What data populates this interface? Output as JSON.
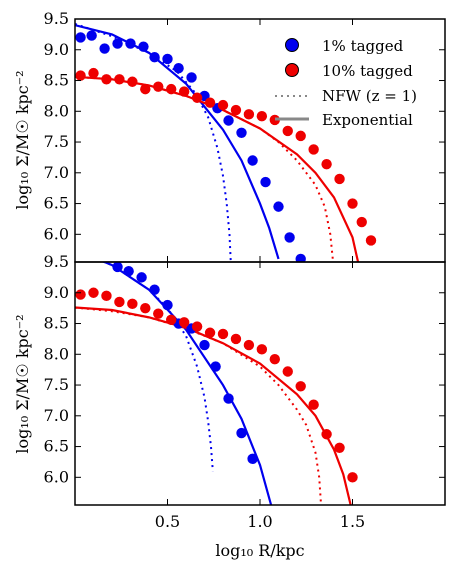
{
  "chart_data": [
    {
      "type": "scatter",
      "panel": "top",
      "xlim": [
        0.0,
        2.0
      ],
      "ylim": [
        5.55,
        9.5
      ],
      "ylabel": "log₁₀ Σ/M☉ kpc⁻²",
      "xlabel": "",
      "yticks": [
        "6.0",
        "6.5",
        "7.0",
        "7.5",
        "8.0",
        "8.5",
        "9.0",
        "9.5"
      ],
      "legend": {
        "placement": "top-right",
        "entries": [
          "1% tagged",
          "10% tagged",
          "NFW (z = 1)",
          "Exponential"
        ]
      },
      "series": [
        {
          "name": "1% tagged",
          "color": "#0000ee",
          "points": [
            [
              0.03,
              9.2
            ],
            [
              0.09,
              9.23
            ],
            [
              0.16,
              9.02
            ],
            [
              0.23,
              9.1
            ],
            [
              0.3,
              9.1
            ],
            [
              0.37,
              9.05
            ],
            [
              0.43,
              8.88
            ],
            [
              0.5,
              8.85
            ],
            [
              0.56,
              8.7
            ],
            [
              0.63,
              8.55
            ],
            [
              0.7,
              8.25
            ],
            [
              0.77,
              8.05
            ],
            [
              0.83,
              7.85
            ],
            [
              0.9,
              7.65
            ],
            [
              0.96,
              7.2
            ],
            [
              1.03,
              6.85
            ],
            [
              1.1,
              6.45
            ],
            [
              1.16,
              5.95
            ],
            [
              1.22,
              5.6
            ]
          ],
          "nfw": [
            [
              0.0,
              9.42
            ],
            [
              0.2,
              9.22
            ],
            [
              0.4,
              8.95
            ],
            [
              0.55,
              8.65
            ],
            [
              0.65,
              8.3
            ],
            [
              0.72,
              7.9
            ],
            [
              0.77,
              7.4
            ],
            [
              0.8,
              6.95
            ],
            [
              0.82,
              6.5
            ],
            [
              0.835,
              6.0
            ],
            [
              0.842,
              5.55
            ]
          ],
          "exponential": [
            [
              0.0,
              9.4
            ],
            [
              0.2,
              9.25
            ],
            [
              0.4,
              8.95
            ],
            [
              0.6,
              8.45
            ],
            [
              0.8,
              7.7
            ],
            [
              0.9,
              7.2
            ],
            [
              1.0,
              6.5
            ],
            [
              1.05,
              6.1
            ],
            [
              1.1,
              5.6
            ]
          ]
        },
        {
          "name": "10% tagged",
          "color": "#ee0000",
          "points": [
            [
              0.03,
              8.58
            ],
            [
              0.1,
              8.62
            ],
            [
              0.17,
              8.52
            ],
            [
              0.24,
              8.52
            ],
            [
              0.31,
              8.48
            ],
            [
              0.38,
              8.36
            ],
            [
              0.45,
              8.4
            ],
            [
              0.52,
              8.36
            ],
            [
              0.59,
              8.32
            ],
            [
              0.66,
              8.22
            ],
            [
              0.73,
              8.14
            ],
            [
              0.8,
              8.1
            ],
            [
              0.87,
              8.02
            ],
            [
              0.94,
              7.95
            ],
            [
              1.01,
              7.92
            ],
            [
              1.08,
              7.86
            ],
            [
              1.15,
              7.68
            ],
            [
              1.22,
              7.6
            ],
            [
              1.29,
              7.38
            ],
            [
              1.36,
              7.14
            ],
            [
              1.43,
              6.9
            ],
            [
              1.5,
              6.5
            ],
            [
              1.55,
              6.2
            ],
            [
              1.6,
              5.9
            ]
          ],
          "nfw": [
            [
              0.0,
              8.56
            ],
            [
              0.2,
              8.52
            ],
            [
              0.4,
              8.42
            ],
            [
              0.6,
              8.25
            ],
            [
              0.8,
              8.02
            ],
            [
              1.0,
              7.72
            ],
            [
              1.1,
              7.5
            ],
            [
              1.2,
              7.2
            ],
            [
              1.3,
              6.8
            ],
            [
              1.35,
              6.45
            ],
            [
              1.38,
              6.0
            ],
            [
              1.395,
              5.55
            ]
          ],
          "exponential": [
            [
              0.0,
              8.56
            ],
            [
              0.2,
              8.52
            ],
            [
              0.4,
              8.42
            ],
            [
              0.6,
              8.25
            ],
            [
              0.8,
              8.02
            ],
            [
              1.0,
              7.72
            ],
            [
              1.2,
              7.3
            ],
            [
              1.3,
              7.0
            ],
            [
              1.4,
              6.6
            ],
            [
              1.5,
              5.95
            ],
            [
              1.53,
              5.55
            ]
          ]
        }
      ]
    },
    {
      "type": "scatter",
      "panel": "bottom",
      "xlim": [
        0.0,
        2.0
      ],
      "ylim": [
        5.55,
        9.5
      ],
      "ylabel": "log₁₀ Σ/M☉ kpc⁻²",
      "xlabel": "log₁₀ R/kpc",
      "xticks": [
        "0.5",
        "1.0",
        "1.5"
      ],
      "yticks": [
        "6.0",
        "6.5",
        "7.0",
        "7.5",
        "8.0",
        "8.5",
        "9.0",
        "9.5"
      ],
      "series": [
        {
          "name": "1% tagged",
          "color": "#0000ee",
          "points": [
            [
              0.23,
              9.42
            ],
            [
              0.29,
              9.35
            ],
            [
              0.36,
              9.25
            ],
            [
              0.43,
              9.05
            ],
            [
              0.5,
              8.8
            ],
            [
              0.56,
              8.5
            ],
            [
              0.63,
              8.42
            ],
            [
              0.7,
              8.15
            ],
            [
              0.76,
              7.8
            ],
            [
              0.83,
              7.28
            ],
            [
              0.9,
              6.72
            ],
            [
              0.96,
              6.3
            ]
          ],
          "nfw": [
            [
              0.0,
              9.68
            ],
            [
              0.2,
              9.45
            ],
            [
              0.4,
              9.05
            ],
            [
              0.5,
              8.75
            ],
            [
              0.6,
              8.3
            ],
            [
              0.66,
              7.8
            ],
            [
              0.7,
              7.3
            ],
            [
              0.72,
              6.9
            ],
            [
              0.735,
              6.5
            ],
            [
              0.745,
              6.1
            ]
          ],
          "exponential": [
            [
              0.0,
              9.7
            ],
            [
              0.2,
              9.45
            ],
            [
              0.4,
              9.05
            ],
            [
              0.6,
              8.4
            ],
            [
              0.8,
              7.5
            ],
            [
              0.9,
              6.95
            ],
            [
              1.0,
              6.2
            ],
            [
              1.06,
              5.55
            ]
          ]
        },
        {
          "name": "10% tagged",
          "color": "#ee0000",
          "points": [
            [
              0.03,
              8.97
            ],
            [
              0.1,
              9.0
            ],
            [
              0.17,
              8.95
            ],
            [
              0.24,
              8.85
            ],
            [
              0.31,
              8.82
            ],
            [
              0.38,
              8.75
            ],
            [
              0.45,
              8.66
            ],
            [
              0.52,
              8.56
            ],
            [
              0.59,
              8.52
            ],
            [
              0.66,
              8.45
            ],
            [
              0.73,
              8.35
            ],
            [
              0.8,
              8.33
            ],
            [
              0.87,
              8.25
            ],
            [
              0.94,
              8.15
            ],
            [
              1.01,
              8.08
            ],
            [
              1.08,
              7.92
            ],
            [
              1.15,
              7.72
            ],
            [
              1.22,
              7.48
            ],
            [
              1.29,
              7.18
            ],
            [
              1.36,
              6.7
            ],
            [
              1.43,
              6.48
            ],
            [
              1.5,
              6.0
            ]
          ],
          "nfw": [
            [
              0.0,
              8.76
            ],
            [
              0.2,
              8.7
            ],
            [
              0.4,
              8.6
            ],
            [
              0.6,
              8.42
            ],
            [
              0.8,
              8.18
            ],
            [
              1.0,
              7.8
            ],
            [
              1.1,
              7.5
            ],
            [
              1.2,
              7.1
            ],
            [
              1.25,
              6.85
            ],
            [
              1.3,
              6.4
            ],
            [
              1.32,
              6.0
            ],
            [
              1.33,
              5.55
            ]
          ],
          "exponential": [
            [
              0.0,
              8.76
            ],
            [
              0.2,
              8.72
            ],
            [
              0.4,
              8.6
            ],
            [
              0.6,
              8.43
            ],
            [
              0.8,
              8.18
            ],
            [
              1.0,
              7.85
            ],
            [
              1.2,
              7.35
            ],
            [
              1.3,
              7.0
            ],
            [
              1.4,
              6.45
            ],
            [
              1.45,
              6.05
            ],
            [
              1.49,
              5.55
            ]
          ]
        }
      ]
    }
  ]
}
